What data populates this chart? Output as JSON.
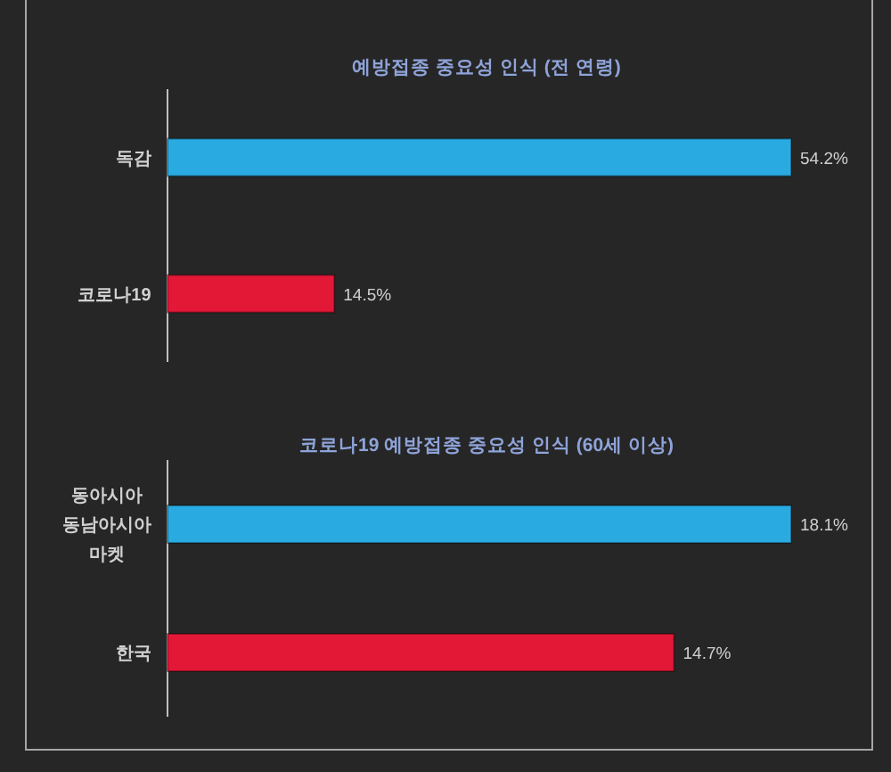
{
  "chart_data": [
    {
      "type": "bar",
      "orientation": "horizontal",
      "title": "예방접종 중요성 인식 (전 연령)",
      "categories": [
        "독감",
        "코로나19"
      ],
      "values": [
        54.2,
        14.5
      ],
      "colors": [
        "#29abe2",
        "#e31837"
      ],
      "value_labels": [
        "54.2%",
        "14.5%"
      ]
    },
    {
      "type": "bar",
      "orientation": "horizontal",
      "title": "코로나19 예방접종 중요성 인식 (60세 이상)",
      "categories": [
        "동아시아\n동남아시아\n마켓",
        "한국"
      ],
      "values": [
        18.1,
        14.7
      ],
      "colors": [
        "#29abe2",
        "#e31837"
      ],
      "value_labels": [
        "18.1%",
        "14.7%"
      ]
    }
  ]
}
